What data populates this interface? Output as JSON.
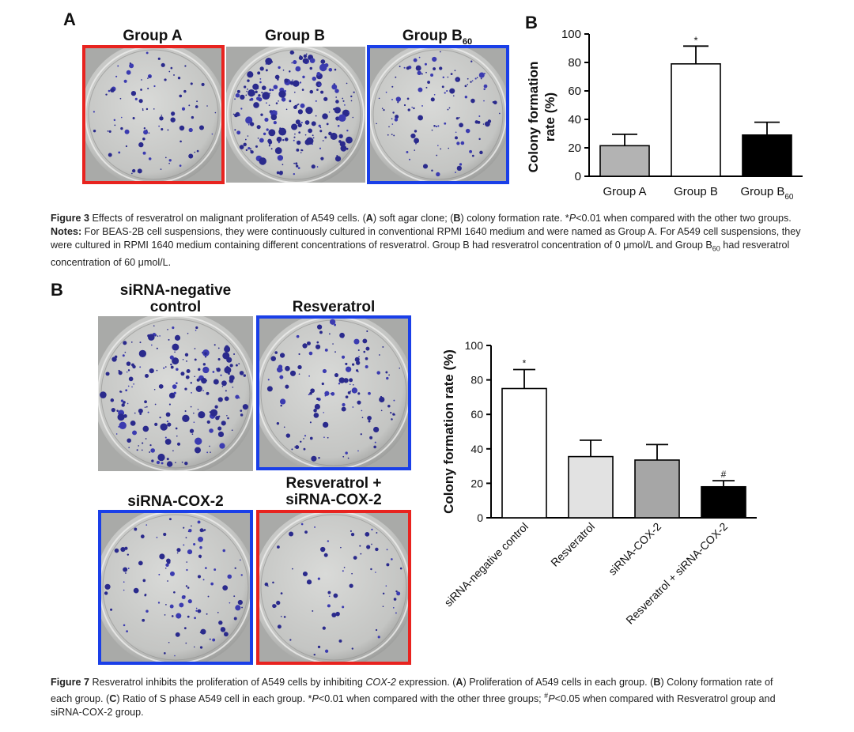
{
  "figure3": {
    "panel_a_letter": "A",
    "panel_b_letter": "B",
    "dishes": [
      {
        "title": "Group A",
        "frame": "red"
      },
      {
        "title": "Group B",
        "frame": "none"
      },
      {
        "title": "Group B",
        "subscript": "60",
        "frame": "blue"
      }
    ],
    "caption": {
      "fig_label": "Figure 3",
      "fig_text": " Effects of resveratrol on malignant proliferation of A549 cells. (",
      "a": "A",
      "a_text": ") soft agar clone; (",
      "b": "B",
      "b_text": ") colony formation rate. *",
      "p": "P",
      "p_text": "<0.01 when compared with the other two groups.",
      "notes_label": "Notes:",
      "notes_line1": " For BEAS-2B cell suspensions, they were continuously cultured in conventional RPMI 1640 medium and were named as Group A. For A549 cell suspensions, they",
      "notes_line2": "were cultured in RPMI 1640 medium containing different concentrations of resveratrol. Group B had resveratrol concentration of 0 μmol/L and Group B",
      "notes_sub": "60",
      "notes_line2_end": " had resveratrol",
      "notes_line3": "concentration of 60 μmol/L."
    }
  },
  "figure7": {
    "panel_b_letter": "B",
    "dishes": [
      {
        "title_line1": "siRNA-negative",
        "title_line2": "control",
        "frame": "none"
      },
      {
        "title_line1": "Resveratrol",
        "title_line2": "",
        "frame": "blue"
      },
      {
        "title_line1": "siRNA-COX-2",
        "title_line2": "",
        "frame": "blue"
      },
      {
        "title_line1": "Resveratrol +",
        "title_line2": "siRNA-COX-2",
        "frame": "red"
      }
    ],
    "caption": {
      "fig_label": "Figure 7",
      "line1_a": " Resveratrol inhibits the proliferation of A549 cells by inhibiting ",
      "line1_gene": "COX-2",
      "line1_b": " expression. (",
      "A": "A",
      "line1_c": ") Proliferation of A549 cells in each group. (",
      "B": "B",
      "line1_d": ") Colony formation rate of",
      "line2_a": "each group. (",
      "C": "C",
      "line2_b": ") Ratio of S phase A549 cell in each group. *",
      "P1": "P",
      "line2_c": "<0.01 when compared with the other three groups; ",
      "hash": "#",
      "P2": "P",
      "line2_d": "<0.05 when compared with Resveratrol group and",
      "line3": "siRNA-COX-2 group."
    }
  },
  "chart_data": [
    {
      "type": "bar",
      "panel": "B",
      "categories": [
        "Group A",
        "Group B",
        "Group B60"
      ],
      "tick_labels": [
        {
          "main": "Group A",
          "sub": ""
        },
        {
          "main": "Group B",
          "sub": ""
        },
        {
          "main": "Group B",
          "sub": "60"
        }
      ],
      "values": [
        21.5,
        79,
        29
      ],
      "errors": [
        8,
        12.5,
        9
      ],
      "annotations": [
        "",
        "*",
        ""
      ],
      "bar_colors": [
        "#b3b3b3",
        "#ffffff",
        "#000000"
      ],
      "ylabel_line1": "Colony formation",
      "ylabel_line2": "rate (%)",
      "ylim": [
        0,
        100
      ],
      "yticks": [
        0,
        20,
        40,
        60,
        80,
        100
      ],
      "grid": false
    },
    {
      "type": "bar",
      "categories": [
        "siRNA-negative control",
        "Resveratrol",
        "siRNA-COX-2",
        "Resveratrol + siRNA-COX-2"
      ],
      "values": [
        75,
        35.5,
        33.5,
        18
      ],
      "errors": [
        11,
        9.5,
        9,
        3.5
      ],
      "annotations": [
        "*",
        "",
        "",
        "#"
      ],
      "bar_colors": [
        "#ffffff",
        "#e2e2e2",
        "#a6a6a6",
        "#000000"
      ],
      "ylabel": "Colony formation rate (%)",
      "ylim": [
        0,
        100
      ],
      "yticks": [
        0,
        20,
        40,
        60,
        80,
        100
      ],
      "grid": false
    }
  ]
}
